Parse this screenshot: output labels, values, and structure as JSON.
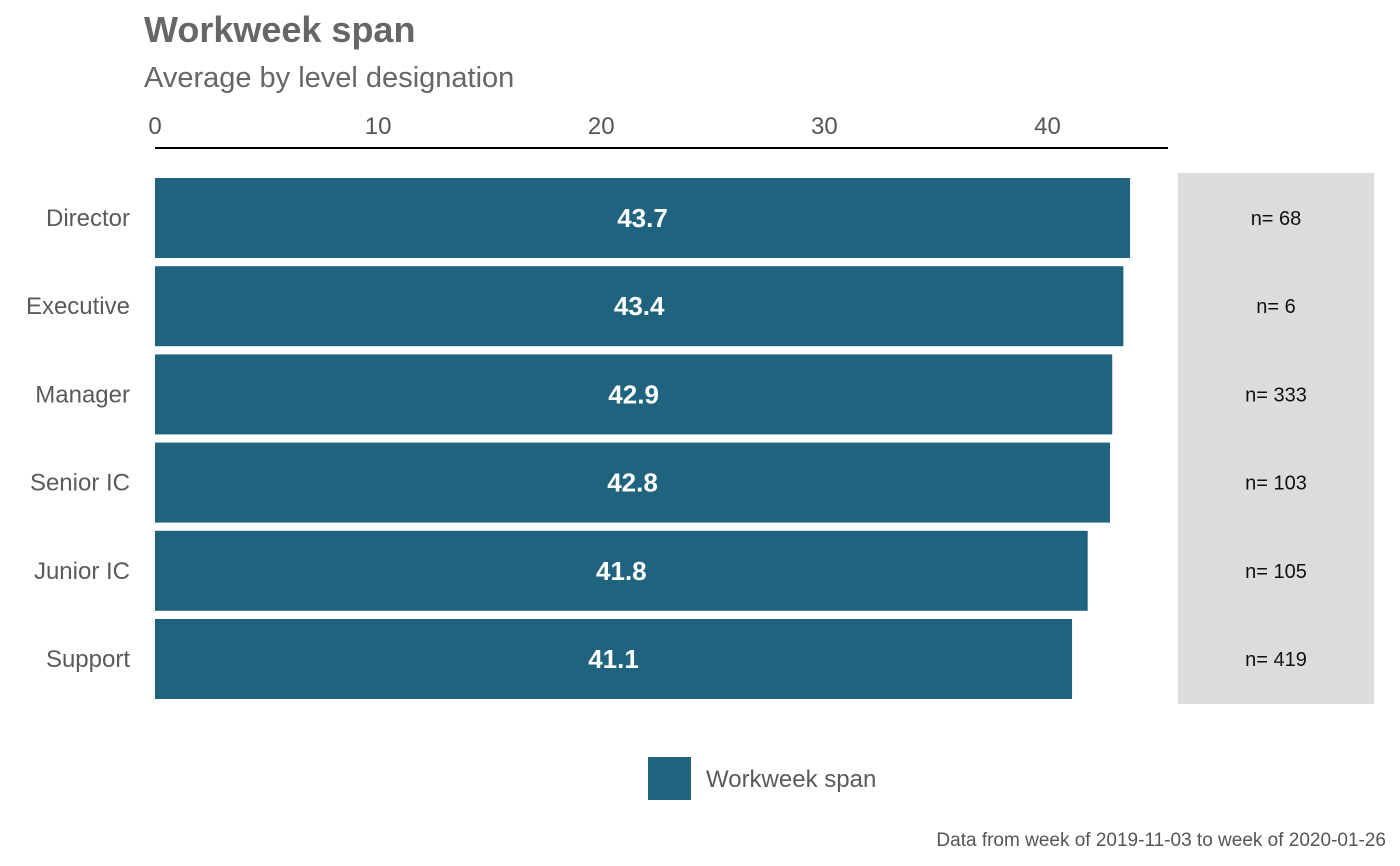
{
  "chart_data": {
    "type": "bar",
    "orientation": "horizontal",
    "title": "Workweek span",
    "subtitle": "Average by level designation",
    "categories": [
      "Director",
      "Executive",
      "Manager",
      "Senior IC",
      "Junior IC",
      "Support"
    ],
    "series": [
      {
        "name": "Workweek span",
        "values": [
          43.7,
          43.4,
          42.9,
          42.8,
          41.8,
          41.1
        ],
        "value_labels": [
          "43.7",
          "43.4",
          "42.9",
          "42.8",
          "41.8",
          "41.1"
        ],
        "color": "#1f637e"
      }
    ],
    "n_labels": [
      "n= 68",
      "n= 6",
      "n= 333",
      "n= 103",
      "n= 105",
      "n= 419"
    ],
    "x_ticks": [
      0,
      10,
      20,
      30,
      40
    ],
    "x_tick_labels": [
      "0",
      "10",
      "20",
      "30",
      "40"
    ],
    "xlim": [
      0,
      45.4
    ],
    "x_axis_position": "top",
    "grid": false,
    "legend_position": "bottom",
    "caption": "Data from week of 2019-11-03 to week of 2020-01-26",
    "colors": {
      "bar": "#1f637e",
      "n_panel": "#dcdcdc",
      "text_muted": "#666666"
    }
  }
}
